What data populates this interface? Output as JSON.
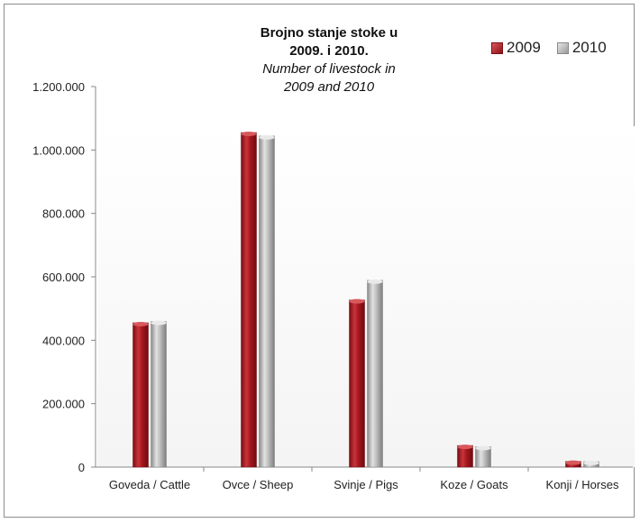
{
  "chart_data": {
    "type": "bar",
    "title_line1": "Brojno stanje stoke  u",
    "title_line2": "2009. i 2010.",
    "subtitle_line1": "Number of livestock in",
    "subtitle_line2": "2009  and 2010",
    "categories": [
      "Goveda / Cattle",
      "Ovce / Sheep",
      "Svinje / Pigs",
      "Koze / Goats",
      "Konji / Horses"
    ],
    "series": [
      {
        "name": "2009",
        "values": [
          455000,
          1055000,
          527000,
          68000,
          18000
        ],
        "color": "#a3171d"
      },
      {
        "name": "2010",
        "values": [
          459000,
          1044000,
          589000,
          64000,
          17000
        ],
        "color": "#b3b3b3"
      }
    ],
    "yticks": [
      "0",
      "200.000",
      "400.000",
      "600.000",
      "800.000",
      "1.000.000",
      "1.200.000"
    ],
    "ylim": [
      0,
      1200000
    ],
    "legend_position": "top-right",
    "grid": false
  }
}
